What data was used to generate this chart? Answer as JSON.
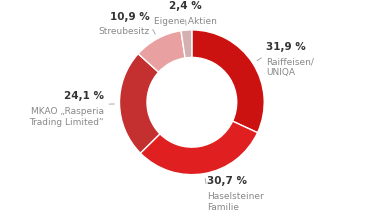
{
  "segments": [
    {
      "label": "Raiffeisen/\nUNIQA",
      "pct": 31.9,
      "color": "#cc1111"
    },
    {
      "label": "Haselsteiner\nFamilie",
      "pct": 30.7,
      "color": "#e02020"
    },
    {
      "label": "MKAO „Rasperia\nTrading Limited“",
      "pct": 24.1,
      "color": "#c43030"
    },
    {
      "label": "Streubesitz",
      "pct": 10.9,
      "color": "#e8a0a0"
    },
    {
      "label": "Eigene Aktien",
      "pct": 2.4,
      "color": "#d4b0b0"
    }
  ],
  "wedge_edge_color": "#ffffff",
  "background_color": "#ffffff",
  "pct_fontsize": 7.5,
  "label_fontsize": 6.5,
  "pct_color": "#333333",
  "label_color": "#888888",
  "donut_width": 0.38
}
